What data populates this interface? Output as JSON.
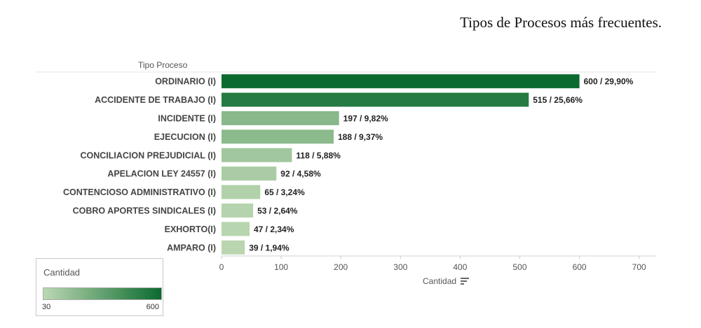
{
  "page_title": "Tipos de Procesos más frecuentes.",
  "legend": {
    "title": "Cantidad",
    "min_label": "30",
    "max_label": "600",
    "min_value": 30,
    "max_value": 600,
    "color_low": "#bcd8b2",
    "color_high": "#0b6b2e"
  },
  "chart_data": {
    "type": "bar",
    "orientation": "horizontal",
    "title": "",
    "ylabel": "Tipo Proceso",
    "xlabel": "Cantidad",
    "xlim": [
      0,
      700
    ],
    "xticks": [
      0,
      100,
      200,
      300,
      400,
      500,
      600,
      700
    ],
    "categories": [
      "ORDINARIO (I)",
      "ACCIDENTE DE TRABAJO (I)",
      "INCIDENTE (I)",
      "EJECUCION (I)",
      "CONCILIACION PREJUDICIAL (I)",
      "APELACION LEY 24557 (I)",
      "CONTENCIOSO ADMINISTRATIVO (I)",
      "COBRO APORTES SINDICALES (I)",
      "EXHORTO(I)",
      "AMPARO (I)"
    ],
    "values": [
      600,
      515,
      197,
      188,
      118,
      92,
      65,
      53,
      47,
      39
    ],
    "data_labels": [
      "600 /  29,90%",
      "515 /  25,66%",
      "197 /  9,82%",
      "188 /  9,37%",
      "118 /  5,88%",
      "92 /  4,58%",
      "65 /  3,24%",
      "53 /  2,64%",
      "47 /  2,34%",
      "39 /  1,94%"
    ],
    "grid": false,
    "legend_position": "bottom-left"
  }
}
